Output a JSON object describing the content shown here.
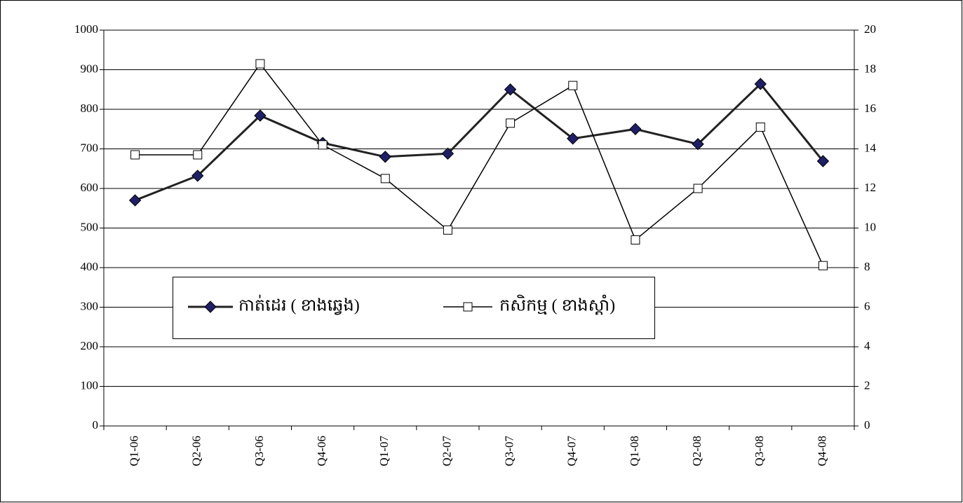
{
  "chart_data": {
    "type": "line",
    "categories": [
      "Q1-06",
      "Q2-06",
      "Q3-06",
      "Q4-06",
      "Q1-07",
      "Q2-07",
      "Q3-07",
      "Q4-07",
      "Q1-08",
      "Q2-08",
      "Q3-08",
      "Q4-08"
    ],
    "series": [
      {
        "name": "កាត់ដេរ ( ខាងឆ្វេង)",
        "color": "#222222",
        "marker_color": "#1f1f66",
        "marker": "diamond",
        "values": [
          570,
          632,
          784,
          715,
          680,
          688,
          850,
          726,
          750,
          712,
          864,
          669
        ]
      },
      {
        "name": "កសិកម្ម ( ខាងស្តាំ)",
        "color": "#000000",
        "marker_color": "#ffffff",
        "marker": "square",
        "axis": "y2",
        "values": [
          13.7,
          13.7,
          18.3,
          14.2,
          12.5,
          9.9,
          15.3,
          17.2,
          9.4,
          12.0,
          15.1,
          8.1
        ]
      }
    ],
    "ylim": [
      0,
      1000
    ],
    "yticks": [
      0,
      100,
      200,
      300,
      400,
      500,
      600,
      700,
      800,
      900,
      1000
    ],
    "y2lim": [
      0,
      20
    ],
    "y2ticks": [
      0,
      2,
      4,
      6,
      8,
      10,
      12,
      14,
      16,
      18,
      20
    ],
    "grid": true
  }
}
